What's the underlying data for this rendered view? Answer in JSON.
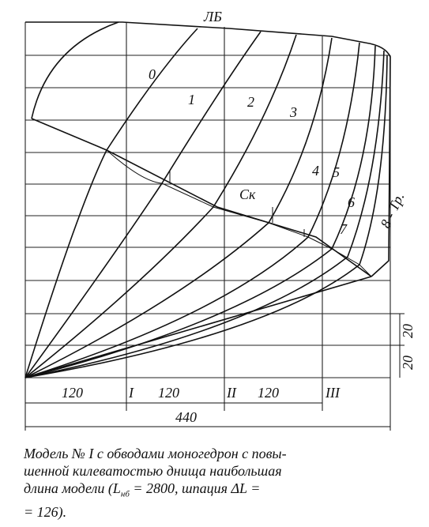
{
  "drawing": {
    "labels": {
      "waterline": "ЛБ",
      "chine": "Ск",
      "sections": [
        "0",
        "1",
        "2",
        "3",
        "4",
        "5",
        "6",
        "7",
        "8 - Тр."
      ]
    },
    "dimensions": {
      "spacings": [
        "120",
        "120",
        "120"
      ],
      "stations": [
        "I",
        "II",
        "III"
      ],
      "total": "440",
      "vertical": [
        "20",
        "20"
      ]
    }
  },
  "caption": {
    "lines": [
      "Модель № I с обводами моногедрон с повы-",
      "шенной килеватостью днища наибольшая",
      [
        "длина модели (L",
        "нб",
        " = 2800, шпация ΔL ="
      ],
      "= 126)."
    ]
  }
}
